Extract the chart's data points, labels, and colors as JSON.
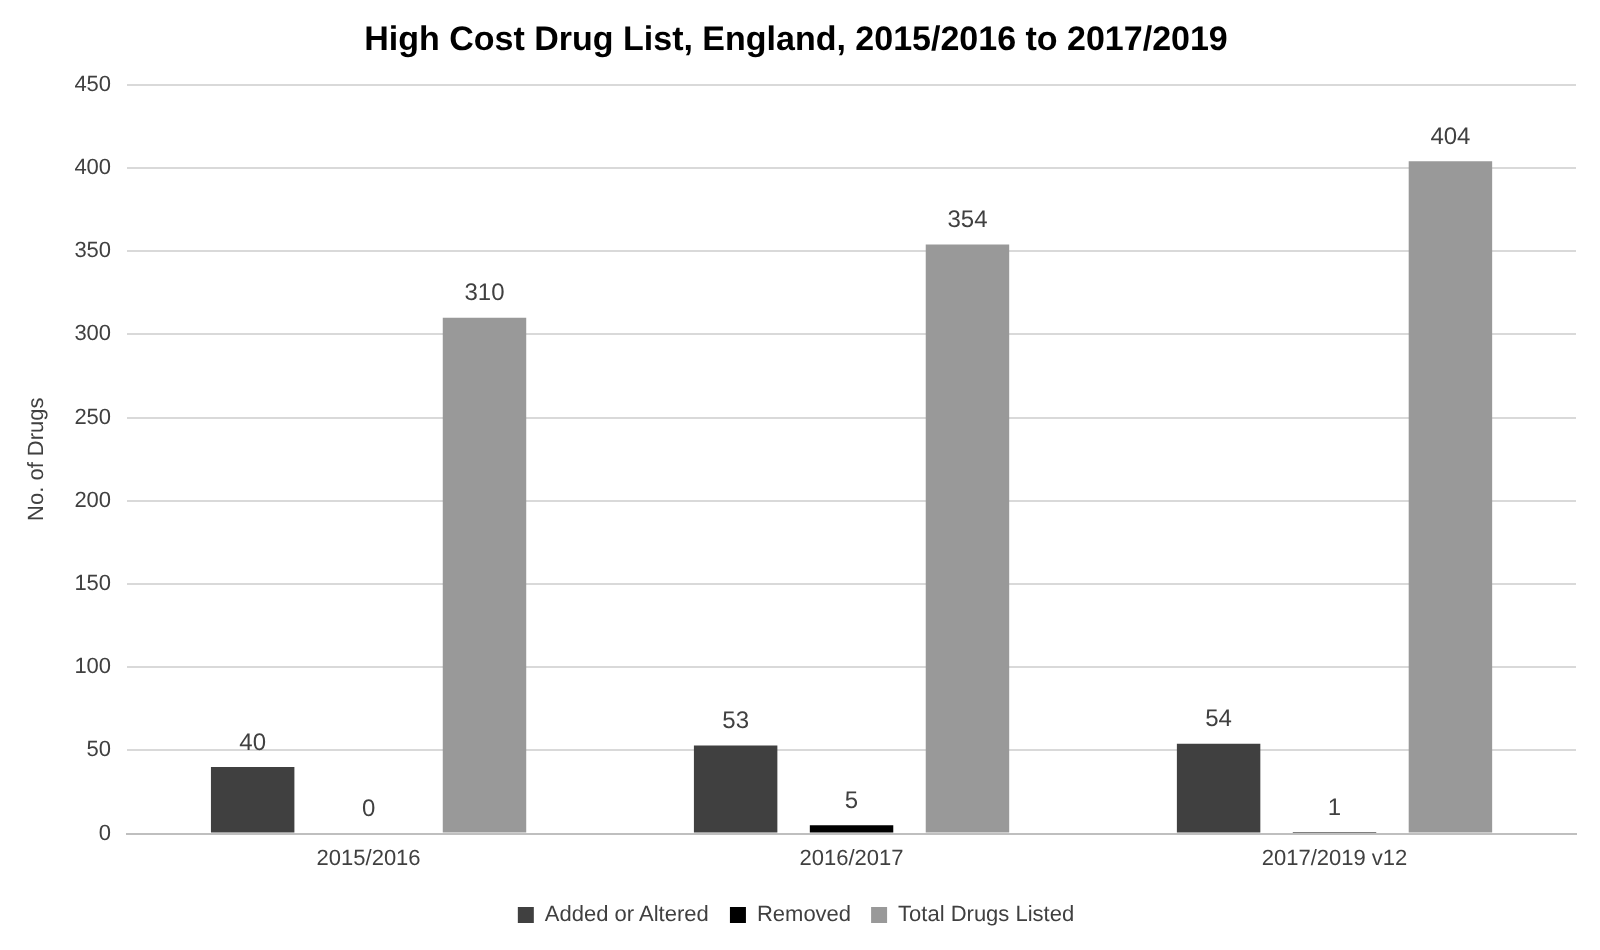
{
  "chart_data": {
    "type": "bar",
    "title": "High Cost Drug List, England, 2015/2016 to 2017/2019",
    "ylabel": "No. of Drugs",
    "categories": [
      "2015/2016",
      "2016/2017",
      "2017/2019 v12"
    ],
    "series": [
      {
        "name": "Added or Altered",
        "color": "#404040",
        "values": [
          40,
          53,
          54
        ]
      },
      {
        "name": "Removed",
        "color": "#000000",
        "values": [
          0,
          5,
          1
        ]
      },
      {
        "name": "Total Drugs Listed",
        "color": "#999999",
        "values": [
          310,
          354,
          404
        ]
      }
    ],
    "ylim": [
      0,
      450
    ],
    "yticks": [
      0,
      50,
      100,
      150,
      200,
      250,
      300,
      350,
      400,
      450
    ],
    "grid": "y",
    "legend": "bottom",
    "data_labels": true
  }
}
